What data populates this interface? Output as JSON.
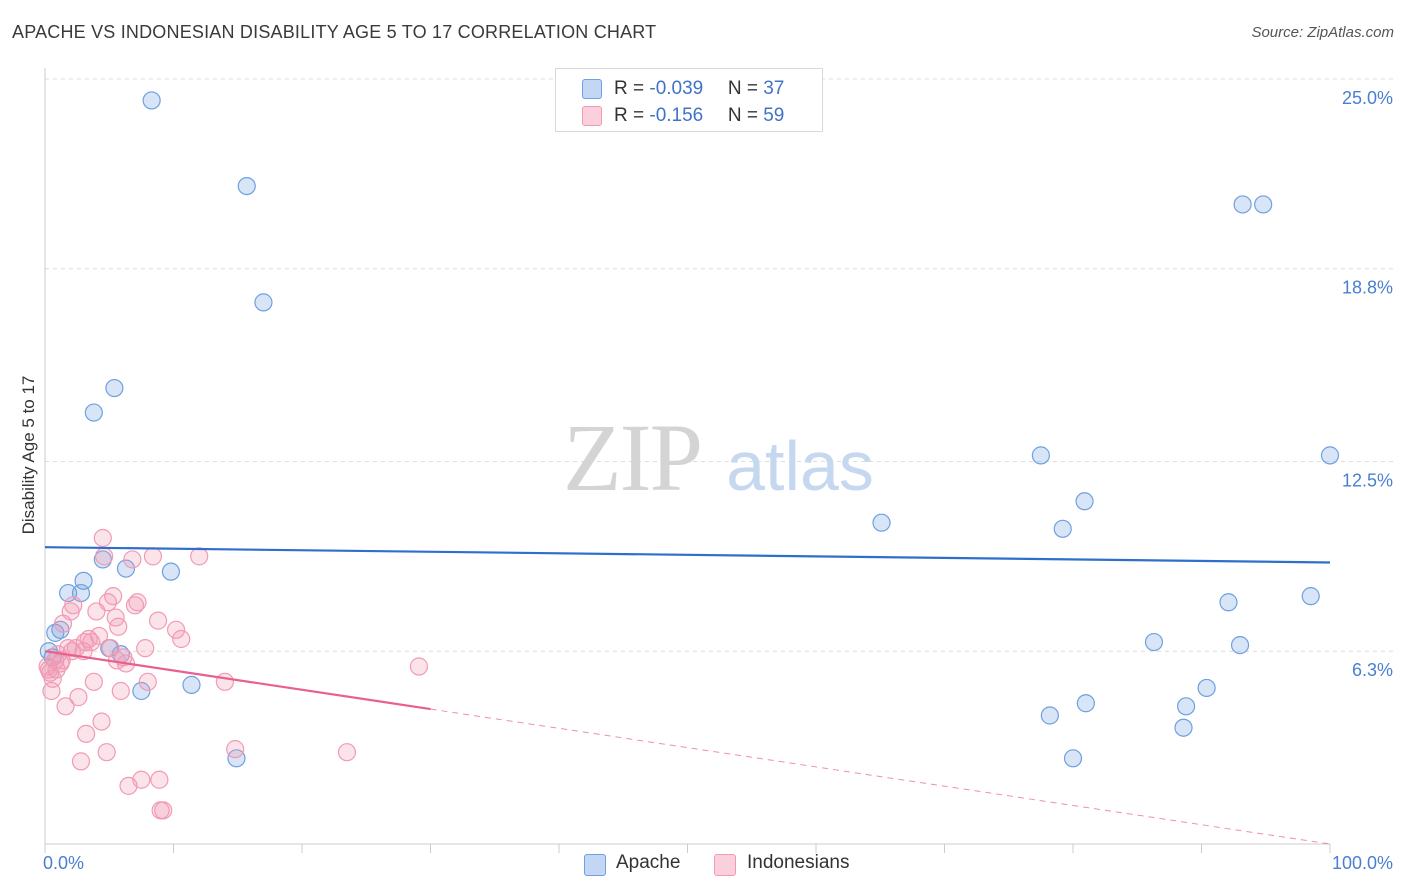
{
  "title": "APACHE VS INDONESIAN DISABILITY AGE 5 TO 17 CORRELATION CHART",
  "source": "Source: ZipAtlas.com",
  "watermark": {
    "zip": "ZIP",
    "atlas": "atlas"
  },
  "legend_top": [
    {
      "r_label": "R = ",
      "r_value": "-0.039",
      "n_label": "N = ",
      "n_value": "37",
      "color": "#6fa0e0"
    },
    {
      "r_label": "R = ",
      "r_value": "-0.156",
      "n_label": "N = ",
      "n_value": "59",
      "color": "#f29ab5"
    }
  ],
  "legend_bottom": [
    {
      "label": "Apache",
      "color": "#6fa0e0"
    },
    {
      "label": "Indonesians",
      "color": "#f29ab5"
    }
  ],
  "chart_data": {
    "type": "scatter",
    "xlabel": "",
    "ylabel": "Disability Age 5 to 17",
    "xlim": [
      0,
      100
    ],
    "ylim": [
      0,
      25
    ],
    "x_tick_labels": [
      {
        "value": 0,
        "label": "0.0%"
      },
      {
        "value": 100,
        "label": "100.0%"
      }
    ],
    "y_tick_labels": [
      {
        "value": 6.3,
        "label": "6.3%"
      },
      {
        "value": 12.5,
        "label": "12.5%"
      },
      {
        "value": 18.8,
        "label": "18.8%"
      },
      {
        "value": 25.0,
        "label": "25.0%"
      }
    ],
    "series": [
      {
        "name": "Apache",
        "color": "#6fa0e0",
        "line_color": "#2f6fcc",
        "trend": {
          "x1": 0,
          "y1": 9.7,
          "x2": 100,
          "y2": 9.2,
          "dash_from": null
        },
        "points": [
          [
            8.3,
            24.3
          ],
          [
            15.7,
            21.5
          ],
          [
            17.0,
            17.7
          ],
          [
            5.4,
            14.9
          ],
          [
            3.8,
            14.1
          ],
          [
            0.8,
            6.9
          ],
          [
            1.2,
            7.0
          ],
          [
            0.3,
            6.3
          ],
          [
            0.6,
            6.1
          ],
          [
            1.8,
            8.2
          ],
          [
            2.8,
            8.2
          ],
          [
            3.0,
            8.6
          ],
          [
            4.5,
            9.3
          ],
          [
            6.3,
            9.0
          ],
          [
            5.0,
            6.4
          ],
          [
            5.9,
            6.2
          ],
          [
            7.5,
            5.0
          ],
          [
            9.8,
            8.9
          ],
          [
            11.4,
            5.2
          ],
          [
            14.9,
            2.8
          ],
          [
            65.1,
            10.5
          ],
          [
            77.5,
            12.7
          ],
          [
            79.2,
            10.3
          ],
          [
            80.9,
            11.2
          ],
          [
            78.2,
            4.2
          ],
          [
            81.0,
            4.6
          ],
          [
            80.0,
            2.8
          ],
          [
            86.3,
            6.6
          ],
          [
            88.6,
            3.8
          ],
          [
            88.8,
            4.5
          ],
          [
            90.4,
            5.1
          ],
          [
            92.1,
            7.9
          ],
          [
            93.0,
            6.5
          ],
          [
            93.2,
            20.9
          ],
          [
            94.8,
            20.9
          ],
          [
            98.5,
            8.1
          ],
          [
            100.0,
            12.7
          ]
        ]
      },
      {
        "name": "Indonesians",
        "color": "#f29ab5",
        "line_color": "#e8608c",
        "trend": {
          "x1": 0,
          "y1": 6.3,
          "x2": 100,
          "y2": 0.0,
          "dash_from": 30
        },
        "points": [
          [
            0.2,
            5.8
          ],
          [
            0.4,
            5.6
          ],
          [
            0.6,
            5.4
          ],
          [
            0.8,
            6.0
          ],
          [
            1.0,
            6.2
          ],
          [
            0.5,
            5.0
          ],
          [
            1.2,
            5.9
          ],
          [
            1.4,
            7.2
          ],
          [
            1.6,
            4.5
          ],
          [
            1.8,
            6.4
          ],
          [
            2.0,
            7.6
          ],
          [
            2.2,
            7.8
          ],
          [
            2.4,
            6.4
          ],
          [
            2.6,
            4.8
          ],
          [
            2.8,
            2.7
          ],
          [
            3.0,
            6.3
          ],
          [
            3.2,
            3.6
          ],
          [
            3.4,
            6.7
          ],
          [
            3.6,
            6.6
          ],
          [
            3.8,
            5.3
          ],
          [
            4.0,
            7.6
          ],
          [
            4.2,
            6.8
          ],
          [
            4.4,
            4.0
          ],
          [
            4.6,
            9.4
          ],
          [
            4.8,
            3.0
          ],
          [
            4.9,
            7.9
          ],
          [
            4.5,
            10.0
          ],
          [
            5.1,
            6.4
          ],
          [
            5.3,
            8.1
          ],
          [
            5.5,
            7.4
          ],
          [
            5.7,
            7.1
          ],
          [
            5.9,
            5.0
          ],
          [
            6.1,
            6.1
          ],
          [
            6.3,
            5.9
          ],
          [
            6.5,
            1.9
          ],
          [
            6.8,
            9.3
          ],
          [
            7.0,
            7.8
          ],
          [
            7.2,
            7.9
          ],
          [
            7.5,
            2.1
          ],
          [
            7.8,
            6.4
          ],
          [
            8.0,
            5.3
          ],
          [
            8.4,
            9.4
          ],
          [
            8.8,
            7.3
          ],
          [
            8.9,
            2.1
          ],
          [
            9.0,
            1.1
          ],
          [
            9.2,
            1.1
          ],
          [
            10.2,
            7.0
          ],
          [
            10.6,
            6.7
          ],
          [
            12.0,
            9.4
          ],
          [
            14.0,
            5.3
          ],
          [
            14.8,
            3.1
          ],
          [
            23.5,
            3.0
          ],
          [
            29.1,
            5.8
          ],
          [
            0.3,
            5.7
          ],
          [
            0.9,
            5.7
          ],
          [
            1.3,
            6.0
          ],
          [
            2.1,
            6.3
          ],
          [
            3.1,
            6.6
          ],
          [
            5.6,
            6.0
          ]
        ]
      }
    ]
  }
}
